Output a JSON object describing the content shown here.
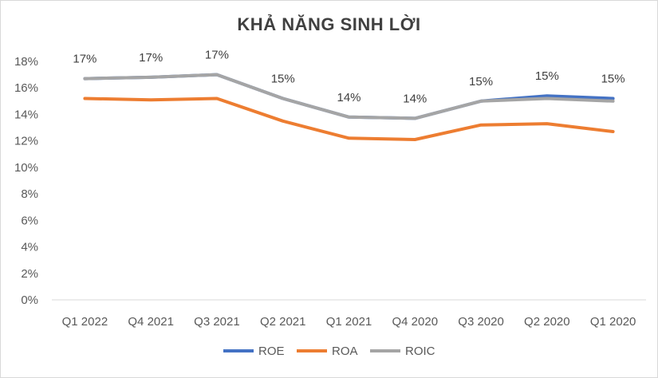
{
  "chart_data": {
    "type": "line",
    "title": "KHẢ NĂNG SINH LỜI",
    "categories": [
      "Q1 2022",
      "Q4 2021",
      "Q3 2021",
      "Q2 2021",
      "Q1 2021",
      "Q4 2020",
      "Q3 2020",
      "Q2 2020",
      "Q1 2020"
    ],
    "ylim": [
      0,
      18
    ],
    "yticks": [
      "0%",
      "2%",
      "4%",
      "6%",
      "8%",
      "10%",
      "12%",
      "14%",
      "16%",
      "18%"
    ],
    "grid": false,
    "legend": "bottom",
    "series": [
      {
        "name": "ROE",
        "color": "#4472c4",
        "values": [
          16.7,
          16.8,
          17.0,
          15.2,
          13.8,
          13.7,
          15.0,
          15.4,
          15.2
        ]
      },
      {
        "name": "ROA",
        "color": "#ed7d31",
        "values": [
          15.2,
          15.1,
          15.2,
          13.5,
          12.2,
          12.1,
          13.2,
          13.3,
          12.7
        ]
      },
      {
        "name": "ROIC",
        "color": "#a5a5a5",
        "values": [
          16.7,
          16.8,
          17.0,
          15.2,
          13.8,
          13.7,
          15.0,
          15.2,
          15.0
        ]
      }
    ],
    "data_labels": [
      "17%",
      "17%",
      "17%",
      "15%",
      "14%",
      "14%",
      "15%",
      "15%",
      "15%"
    ]
  }
}
